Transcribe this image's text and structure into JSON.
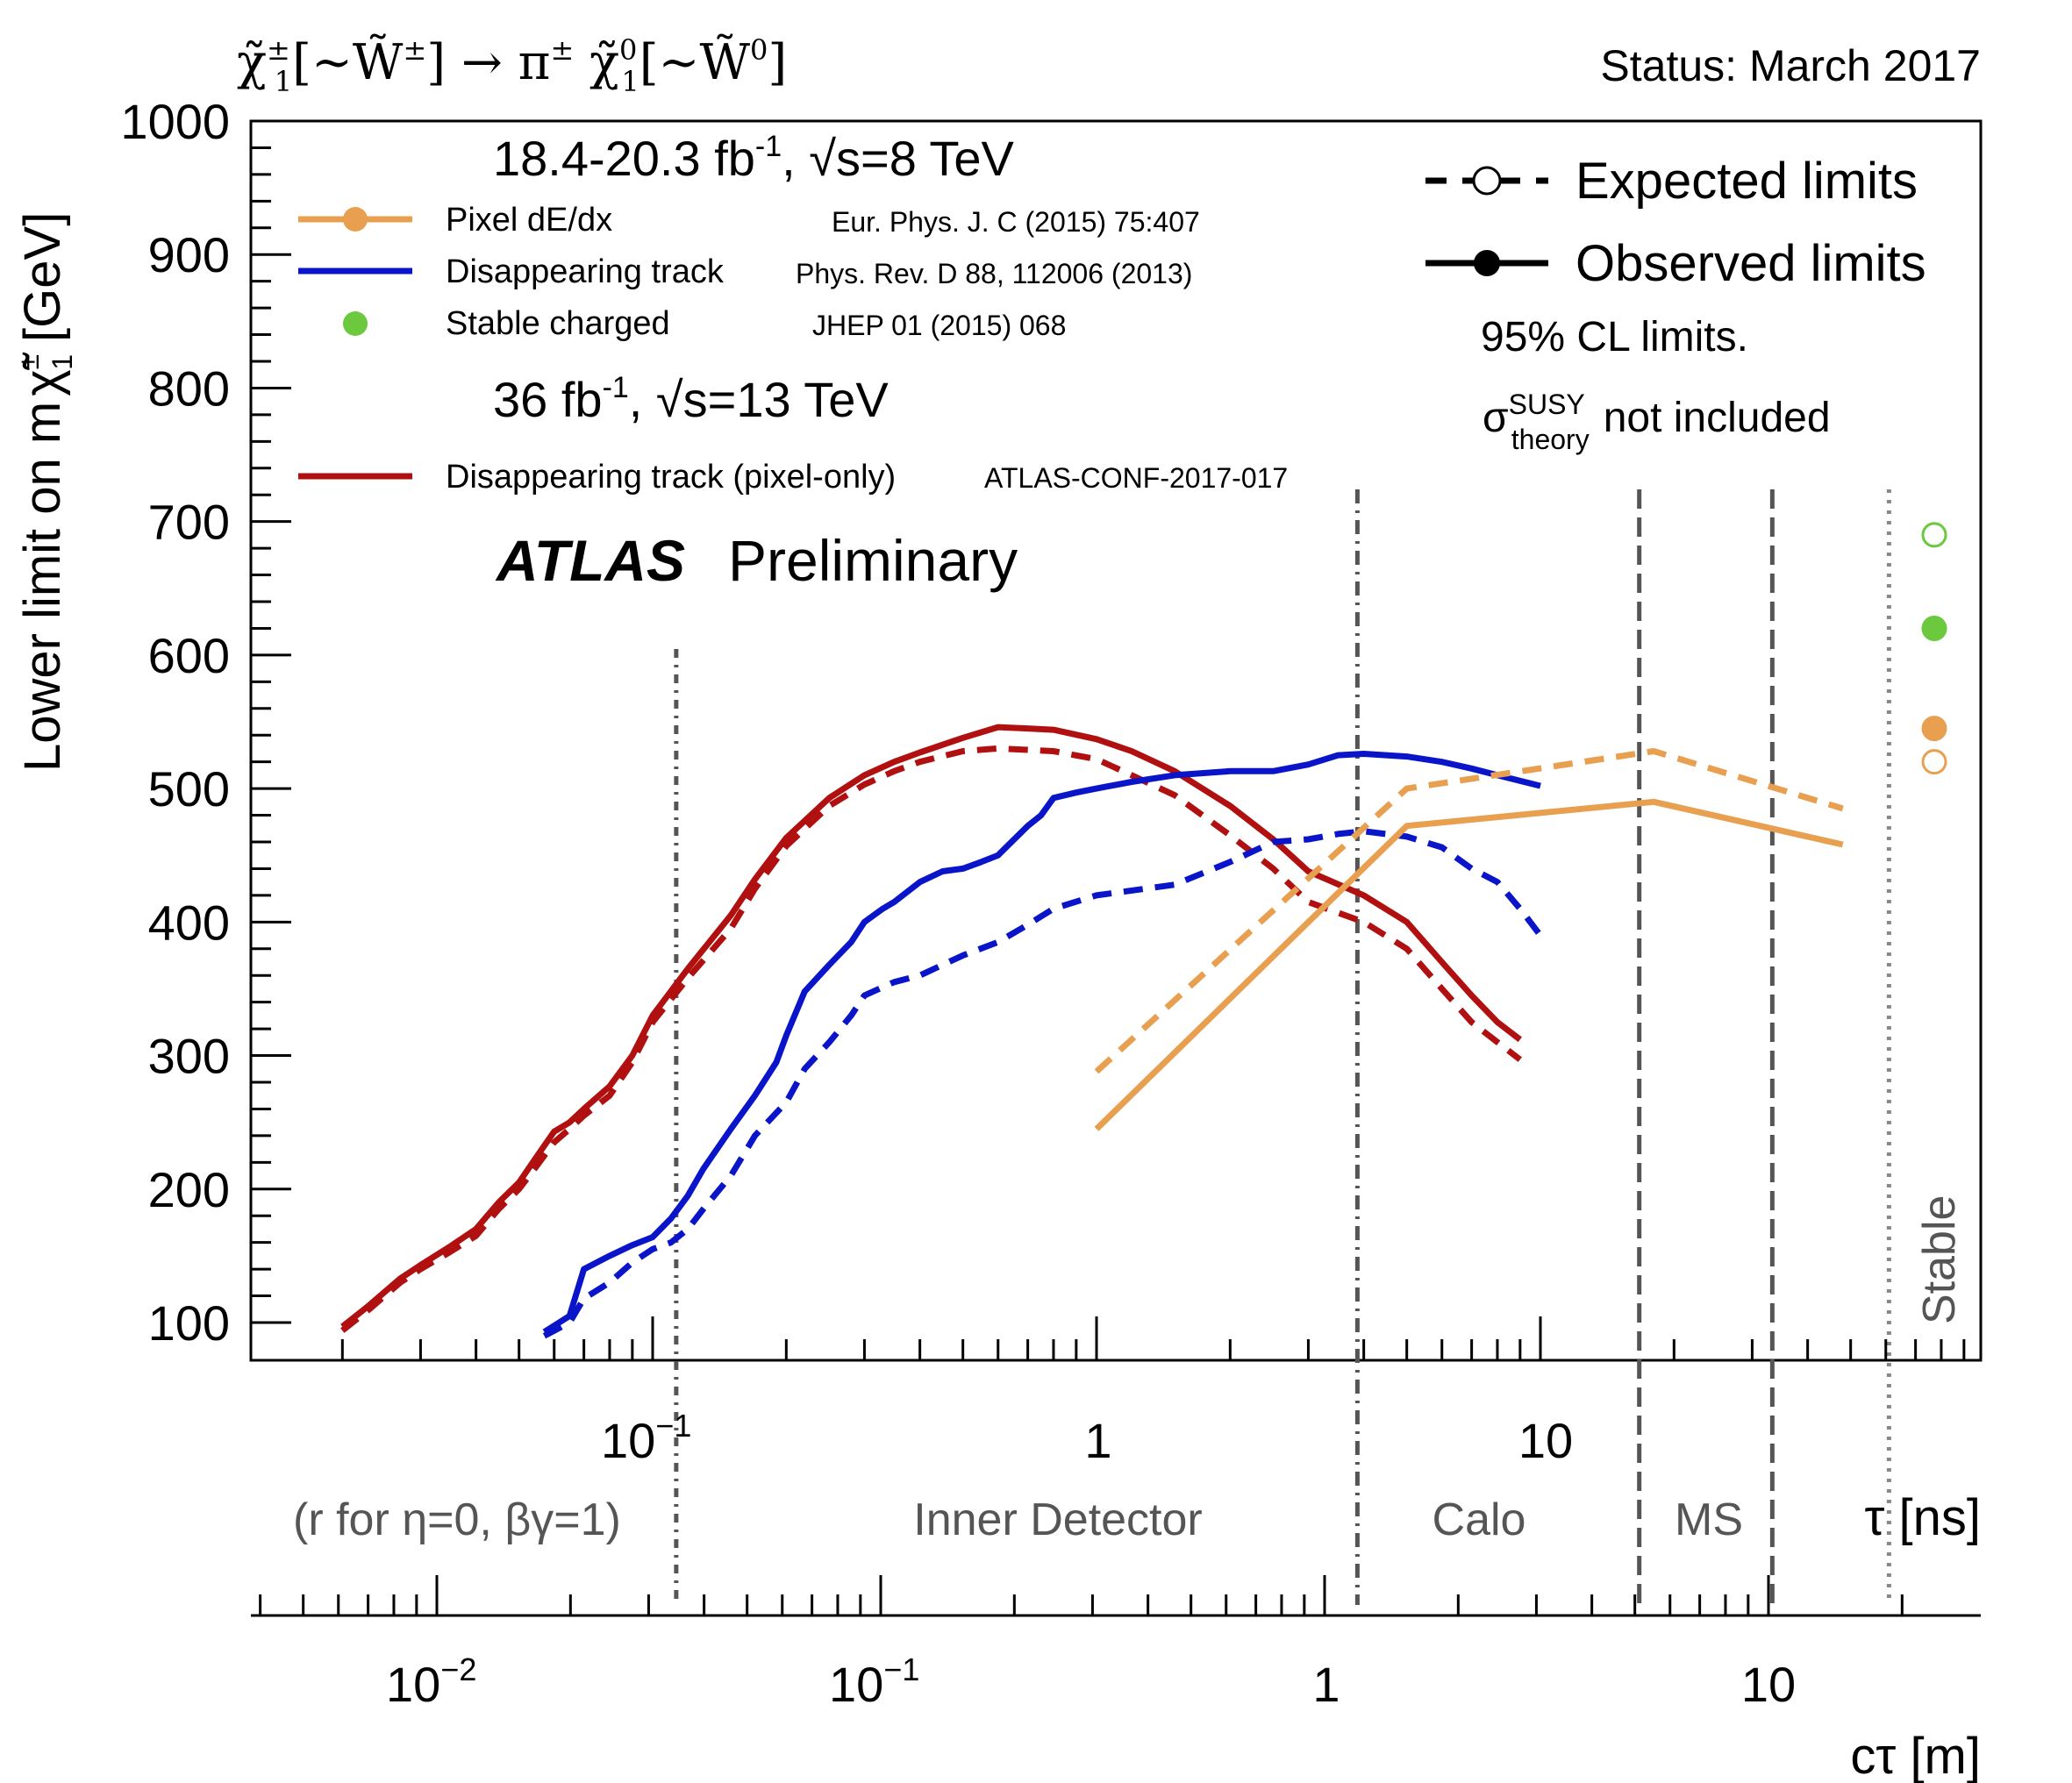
{
  "header": {
    "process_main": "χ̃",
    "process_sup1": "±",
    "process_sub1": "1",
    "process_mid": "[~W̃",
    "process_sup2": "±",
    "process_arrow": "] → π",
    "process_sup3": "±",
    "process_chi": " χ̃",
    "process_sup4": "0",
    "process_sub4": "1",
    "process_mid2": "[~W̃",
    "process_sup5": "0",
    "process_end": "]",
    "status": "Status: March 2017"
  },
  "legend": {
    "run1_header_pre": "18.4-20.3 fb",
    "run1_header_sup": "-1",
    "run1_header_post": ", √s=8 TeV",
    "run2_header_pre": "36 fb",
    "run2_header_sup": "-1",
    "run2_header_post": ", √s=13 TeV",
    "pixel_label": "Pixel dE/dx",
    "pixel_ref": "Eur. Phys. J. C (2015) 75:407",
    "dt_label": "Disappearing track",
    "dt_ref": "Phys. Rev. D 88, 112006 (2013)",
    "stable_label": "Stable charged",
    "stable_ref": "JHEP 01 (2015) 068",
    "dt13_label": "Disappearing track (pixel-only)",
    "dt13_ref": "ATLAS-CONF-2017-017",
    "expected": "Expected limits",
    "observed": "Observed limits",
    "cl": "95% CL limits.",
    "sigma": "σ",
    "sigma_sup": "SUSY",
    "sigma_sub": "theory",
    "sigma_post": "not included",
    "atlas": "ATLAS",
    "preliminary": "Preliminary"
  },
  "regions": {
    "r_label": "(r for η=0, βγ=1)",
    "inner": "Inner Detector",
    "calo": "Calo",
    "ms": "MS",
    "stable": "Stable"
  },
  "axes": {
    "ylabel_pre": "Lower limit on m",
    "ylabel_chi": "χ̃",
    "ylabel_sup": "±",
    "ylabel_sub": "1",
    "ylabel_unit": "[GeV]",
    "xlabel_tau": "τ [ns]",
    "xlabel_ctau": "cτ [m]",
    "tau_tick_0_base": "10",
    "tau_tick_0_exp": "−1",
    "tau_tick_1": "1",
    "tau_tick_2": "10",
    "ctau_tick_0_base": "10",
    "ctau_tick_0_exp": "−2",
    "ctau_tick_1_base": "10",
    "ctau_tick_1_exp": "−1",
    "ctau_tick_2": "1",
    "ctau_tick_3": "10"
  },
  "chart_data": {
    "type": "line",
    "x_axis": "tau [ns] (log scale), secondary axis c·tau [m]",
    "xlim_tau_ns": [
      0.013,
      100
    ],
    "ylim": [
      80,
      1000
    ],
    "yticks": [
      100,
      200,
      300,
      400,
      500,
      600,
      700,
      800,
      900,
      1000
    ],
    "colors": {
      "pixel": "#e8a050",
      "disappearing_8tev": "#0a14c8",
      "stable": "#6cc83c",
      "disappearing_13tev": "#b01010",
      "region_lines": "#555555"
    },
    "region_boundaries_tau_ns": [
      0.113,
      3.87,
      16.7,
      33.3,
      61.0
    ],
    "series": [
      {
        "name": "Disappearing track (pixel-only)",
        "style": "observed",
        "color": "#b01010",
        "x": [
          0.02,
          0.023,
          0.027,
          0.03,
          0.035,
          0.04,
          0.045,
          0.05,
          0.055,
          0.06,
          0.065,
          0.07,
          0.08,
          0.09,
          0.1,
          0.12,
          0.15,
          0.17,
          0.2,
          0.25,
          0.3,
          0.35,
          0.4,
          0.5,
          0.6,
          0.7,
          0.8,
          1.0,
          1.2,
          1.5,
          2.0,
          2.5,
          3.0,
          4.0,
          5.0,
          6.0,
          7.0,
          8.0,
          9.0
        ],
        "y": [
          97,
          113,
          133,
          143,
          157,
          170,
          190,
          205,
          225,
          243,
          250,
          260,
          277,
          300,
          330,
          365,
          405,
          432,
          463,
          493,
          510,
          520,
          527,
          538,
          546,
          545,
          544,
          537,
          528,
          513,
          487,
          462,
          438,
          420,
          400,
          370,
          345,
          325,
          312
        ]
      },
      {
        "name": "Disappearing track (pixel-only)",
        "style": "expected",
        "color": "#b01010",
        "x": [
          0.02,
          0.023,
          0.027,
          0.03,
          0.035,
          0.04,
          0.045,
          0.05,
          0.055,
          0.06,
          0.065,
          0.07,
          0.08,
          0.09,
          0.1,
          0.12,
          0.15,
          0.17,
          0.2,
          0.25,
          0.3,
          0.35,
          0.4,
          0.5,
          0.6,
          0.7,
          0.8,
          1.0,
          1.2,
          1.5,
          2.0,
          2.5,
          3.0,
          4.0,
          5.0,
          6.0,
          7.0,
          8.0,
          9.0
        ],
        "y": [
          94,
          110,
          130,
          140,
          153,
          165,
          185,
          200,
          218,
          235,
          245,
          255,
          270,
          295,
          325,
          358,
          395,
          425,
          457,
          487,
          503,
          513,
          520,
          528,
          530,
          529,
          528,
          522,
          510,
          495,
          465,
          440,
          415,
          400,
          380,
          350,
          325,
          310,
          297
        ]
      },
      {
        "name": "Disappearing track",
        "style": "observed",
        "color": "#0a14c8",
        "x": [
          0.057,
          0.065,
          0.07,
          0.08,
          0.09,
          0.1,
          0.11,
          0.12,
          0.13,
          0.15,
          0.17,
          0.19,
          0.2,
          0.22,
          0.25,
          0.28,
          0.3,
          0.33,
          0.35,
          0.4,
          0.45,
          0.5,
          0.55,
          0.6,
          0.7,
          0.75,
          0.8,
          0.9,
          1.0,
          1.2,
          1.5,
          2.0,
          2.5,
          3.0,
          3.5,
          4.0,
          5.0,
          6.0,
          7.0,
          8.0,
          10.0
        ],
        "y": [
          93,
          105,
          140,
          150,
          158,
          164,
          178,
          195,
          215,
          245,
          270,
          295,
          315,
          348,
          368,
          385,
          400,
          410,
          415,
          430,
          438,
          440,
          445,
          450,
          472,
          480,
          493,
          497,
          500,
          505,
          510,
          513,
          513,
          518,
          525,
          526,
          524,
          520,
          515,
          510,
          502
        ]
      },
      {
        "name": "Disappearing track",
        "style": "expected",
        "color": "#0a14c8",
        "x": [
          0.057,
          0.065,
          0.07,
          0.08,
          0.09,
          0.1,
          0.11,
          0.12,
          0.13,
          0.15,
          0.17,
          0.2,
          0.22,
          0.25,
          0.28,
          0.3,
          0.35,
          0.4,
          0.5,
          0.6,
          0.7,
          0.8,
          1.0,
          1.5,
          2.0,
          2.5,
          3.0,
          3.5,
          4.0,
          5.0,
          6.0,
          7.0,
          8.0,
          9.0,
          10.0
        ],
        "y": [
          90,
          100,
          118,
          130,
          145,
          155,
          160,
          170,
          185,
          210,
          240,
          265,
          290,
          310,
          330,
          345,
          355,
          360,
          375,
          385,
          398,
          410,
          420,
          428,
          445,
          460,
          462,
          466,
          468,
          464,
          456,
          440,
          430,
          410,
          390
        ]
      },
      {
        "name": "Pixel dE/dx",
        "style": "observed",
        "color": "#e8a050",
        "x": [
          1.0,
          5.0,
          18.0,
          48.0
        ],
        "y": [
          245,
          472,
          490,
          458
        ]
      },
      {
        "name": "Pixel dE/dx",
        "style": "expected",
        "color": "#e8a050",
        "x": [
          1.0,
          5.0,
          18.0,
          48.0
        ],
        "y": [
          288,
          500,
          528,
          485
        ]
      }
    ],
    "stable_points": [
      {
        "name": "Stable charged",
        "style": "expected",
        "color": "#6cc83c",
        "y": 690
      },
      {
        "name": "Stable charged",
        "style": "observed",
        "color": "#6cc83c",
        "y": 620
      },
      {
        "name": "Pixel dE/dx",
        "style": "observed",
        "color": "#e8a050",
        "y": 545
      },
      {
        "name": "Pixel dE/dx",
        "style": "expected",
        "color": "#e8a050",
        "y": 520
      }
    ]
  }
}
